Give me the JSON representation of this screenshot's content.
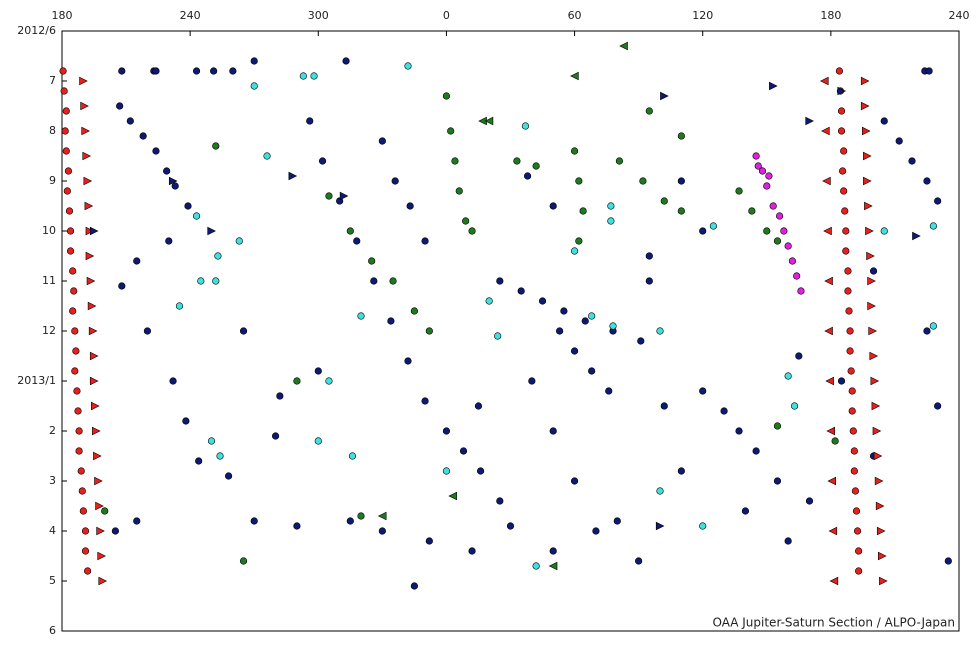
{
  "chart_data": {
    "type": "scatter",
    "credit": "OAA Jupiter-Saturn Section / ALPO-Japan",
    "xlim": [
      180,
      600
    ],
    "xticks": [
      {
        "value": 180,
        "label": "180"
      },
      {
        "value": 240,
        "label": "240"
      },
      {
        "value": 300,
        "label": "300"
      },
      {
        "value": 360,
        "label": "0"
      },
      {
        "value": 420,
        "label": "60"
      },
      {
        "value": 480,
        "label": "120"
      },
      {
        "value": 540,
        "label": "180"
      },
      {
        "value": 600,
        "label": "240"
      }
    ],
    "ylim": [
      0,
      12
    ],
    "y_reversed": true,
    "yticks": [
      {
        "value": 0,
        "label": "2012/6"
      },
      {
        "value": 1,
        "label": "7"
      },
      {
        "value": 2,
        "label": "8"
      },
      {
        "value": 3,
        "label": "9"
      },
      {
        "value": 4,
        "label": "10"
      },
      {
        "value": 5,
        "label": "11"
      },
      {
        "value": 6,
        "label": "12"
      },
      {
        "value": 7,
        "label": "2013/1"
      },
      {
        "value": 8,
        "label": "2"
      },
      {
        "value": 9,
        "label": "3"
      },
      {
        "value": 10,
        "label": "4"
      },
      {
        "value": 11,
        "label": "5"
      },
      {
        "value": 12,
        "label": "6"
      }
    ],
    "series": [
      {
        "color": "#0d1a73",
        "marker": "circle",
        "x": [
          208,
          223,
          224,
          243,
          251,
          260,
          270,
          313,
          584,
          586,
          207,
          212,
          218,
          224,
          229,
          233,
          239,
          296,
          302,
          310,
          318,
          326,
          334,
          342,
          350,
          360,
          368,
          376,
          385,
          330,
          336,
          343,
          350,
          385,
          395,
          405,
          415,
          425,
          438,
          451,
          413,
          420,
          428,
          436,
          565,
          572,
          578,
          585,
          590,
          480,
          490,
          497,
          505,
          515,
          530,
          270,
          290,
          315,
          330,
          352,
          372,
          390,
          410,
          430,
          220,
          232,
          238,
          244,
          258,
          280,
          470,
          480,
          455,
          462,
          470,
          500,
          520,
          525,
          545,
          560,
          215,
          208,
          230,
          265,
          282,
          300,
          375,
          400,
          410,
          420,
          440,
          450,
          398,
          410,
          455,
          585,
          590,
          595,
          560,
          345,
          205,
          215
        ],
        "values": [
          0.8,
          0.8,
          0.8,
          0.8,
          0.8,
          0.8,
          0.6,
          0.6,
          0.8,
          0.8,
          1.5,
          1.8,
          2.1,
          2.4,
          2.8,
          3.1,
          3.5,
          1.8,
          2.6,
          3.4,
          4.2,
          5.0,
          5.8,
          6.6,
          7.4,
          8.0,
          8.4,
          8.8,
          9.4,
          2.2,
          3.0,
          3.5,
          4.2,
          5.0,
          5.2,
          5.4,
          5.6,
          5.8,
          6.0,
          6.2,
          6.0,
          6.4,
          6.8,
          7.2,
          1.8,
          2.2,
          2.6,
          3.0,
          3.4,
          7.2,
          7.6,
          8.0,
          8.4,
          9.0,
          9.4,
          9.8,
          9.9,
          9.8,
          10.0,
          10.2,
          10.4,
          9.9,
          10.4,
          10.0,
          6.0,
          7.0,
          7.8,
          8.6,
          8.9,
          8.1,
          3.0,
          4.0,
          5.0,
          7.5,
          8.8,
          9.6,
          10.2,
          6.5,
          7.0,
          8.5,
          4.6,
          5.1,
          4.2,
          6.0,
          7.3,
          6.8,
          7.5,
          7.0,
          8.0,
          9.0,
          9.8,
          10.6,
          2.9,
          3.5,
          4.5,
          6.0,
          7.5,
          10.6,
          4.8,
          11.1,
          10.0,
          9.8
        ]
      },
      {
        "color": "#1e7a1e",
        "marker": "circle",
        "x": [
          360,
          362,
          364,
          366,
          369,
          372,
          305,
          315,
          325,
          335,
          345,
          352,
          420,
          422,
          424,
          422,
          441,
          452,
          462,
          470,
          497,
          503,
          510,
          515,
          393,
          402,
          252,
          290,
          320,
          515,
          542,
          265,
          200,
          455,
          470
        ],
        "values": [
          1.3,
          2.0,
          2.6,
          3.2,
          3.8,
          4.0,
          3.3,
          4.0,
          4.6,
          5.0,
          5.6,
          6.0,
          2.4,
          3.0,
          3.6,
          4.2,
          2.6,
          3.0,
          3.4,
          3.6,
          3.2,
          3.6,
          4.0,
          4.2,
          2.6,
          2.7,
          2.3,
          7.0,
          9.7,
          7.9,
          8.2,
          10.6,
          9.6,
          1.6,
          2.1
        ]
      },
      {
        "color": "#40e0e0",
        "marker": "circle",
        "x": [
          293,
          298,
          270,
          342,
          397,
          276,
          243,
          253,
          263,
          252,
          235,
          245,
          320,
          305,
          250,
          254,
          300,
          316,
          384,
          380,
          428,
          438,
          460,
          437,
          437,
          420,
          485,
          360,
          402,
          565,
          523,
          520,
          588,
          588,
          460,
          480
        ],
        "values": [
          0.9,
          0.9,
          1.1,
          0.7,
          1.9,
          2.5,
          3.7,
          4.5,
          4.2,
          5.0,
          5.5,
          5.0,
          5.7,
          7.0,
          8.2,
          8.5,
          8.2,
          8.5,
          6.1,
          5.4,
          5.7,
          5.9,
          6.0,
          3.5,
          3.8,
          4.4,
          3.9,
          8.8,
          10.7,
          4.0,
          7.5,
          6.9,
          3.9,
          5.9,
          9.2,
          9.9
        ]
      },
      {
        "color": "#e020e0",
        "marker": "circle",
        "x": [
          505,
          508,
          510,
          513,
          516,
          518,
          520,
          522,
          524,
          526,
          506,
          511
        ],
        "values": [
          2.5,
          2.8,
          3.1,
          3.5,
          3.7,
          4.0,
          4.3,
          4.6,
          4.9,
          5.2,
          2.7,
          2.9
        ]
      },
      {
        "color": "#e8201c",
        "marker": "circle",
        "x": [
          180.5,
          181,
          182,
          181.5,
          182,
          183,
          182.5,
          183.5,
          184,
          184,
          185,
          185.5,
          185,
          186,
          186.5,
          186,
          187,
          187.5,
          188,
          188,
          189,
          189.5,
          190,
          191,
          191,
          192,
          544,
          544.5,
          545,
          545,
          546,
          545.5,
          546,
          546.5,
          547,
          547,
          548,
          548,
          548.5,
          549,
          549,
          549.5,
          550,
          550,
          550.5,
          551,
          551,
          551.5,
          552,
          552.5,
          553,
          553
        ],
        "values": [
          0.8,
          1.2,
          1.6,
          2.0,
          2.4,
          2.8,
          3.2,
          3.6,
          4.0,
          4.4,
          4.8,
          5.2,
          5.6,
          6.0,
          6.4,
          6.8,
          7.2,
          7.6,
          8.0,
          8.4,
          8.8,
          9.2,
          9.6,
          10.0,
          10.4,
          10.8,
          0.8,
          1.2,
          1.6,
          2.0,
          2.4,
          2.8,
          3.2,
          3.6,
          4.0,
          4.4,
          4.8,
          5.2,
          5.6,
          6.0,
          6.4,
          6.8,
          7.2,
          7.6,
          8.0,
          8.4,
          8.8,
          9.2,
          9.6,
          10.0,
          10.4,
          10.8
        ]
      },
      {
        "color": "#e8201c",
        "marker": "triangle-right",
        "x": [
          190,
          190.5,
          191,
          191.5,
          192,
          192.5,
          193,
          193,
          193.5,
          194,
          194.5,
          195,
          195,
          195.5,
          196,
          196.5,
          197,
          197.5,
          198,
          198.5,
          199,
          556,
          556,
          556.5,
          557,
          557,
          557.5,
          558,
          558.5,
          559,
          559,
          559.5,
          560,
          560.5,
          561,
          561.5,
          562,
          562.5,
          563,
          563.5,
          564,
          564.5
        ],
        "values": [
          1.0,
          1.5,
          2.0,
          2.5,
          3.0,
          3.5,
          4.0,
          4.5,
          5.0,
          5.5,
          6.0,
          6.5,
          7.0,
          7.5,
          8.0,
          8.5,
          9.0,
          9.5,
          10.0,
          10.5,
          11.0,
          1.0,
          1.5,
          2.0,
          2.5,
          3.0,
          3.5,
          4.0,
          4.5,
          5.0,
          5.5,
          6.0,
          6.5,
          7.0,
          7.5,
          8.0,
          8.5,
          9.0,
          9.5,
          10.0,
          10.5,
          11.0
        ]
      },
      {
        "color": "#e8201c",
        "marker": "triangle-left",
        "x": [
          537,
          537.5,
          538,
          538.5,
          539,
          539,
          539.5,
          540,
          540.5,
          541,
          541.5
        ],
        "values": [
          1,
          2,
          3,
          4,
          5,
          6,
          7,
          8,
          9,
          10,
          11
        ]
      },
      {
        "color": "#0d1a73",
        "marker": "triangle-right",
        "x": [
          250,
          288,
          312,
          462,
          530,
          513,
          580,
          195,
          232,
          545,
          460
        ],
        "values": [
          4.0,
          2.9,
          3.3,
          1.3,
          1.8,
          1.1,
          4.1,
          4.0,
          3.0,
          1.2,
          9.9
        ]
      },
      {
        "color": "#1e7a1e",
        "marker": "triangle-left",
        "x": [
          377,
          380,
          443,
          420,
          410,
          330,
          363
        ],
        "values": [
          1.8,
          1.8,
          0.3,
          0.9,
          10.7,
          9.7,
          9.3
        ]
      }
    ]
  }
}
